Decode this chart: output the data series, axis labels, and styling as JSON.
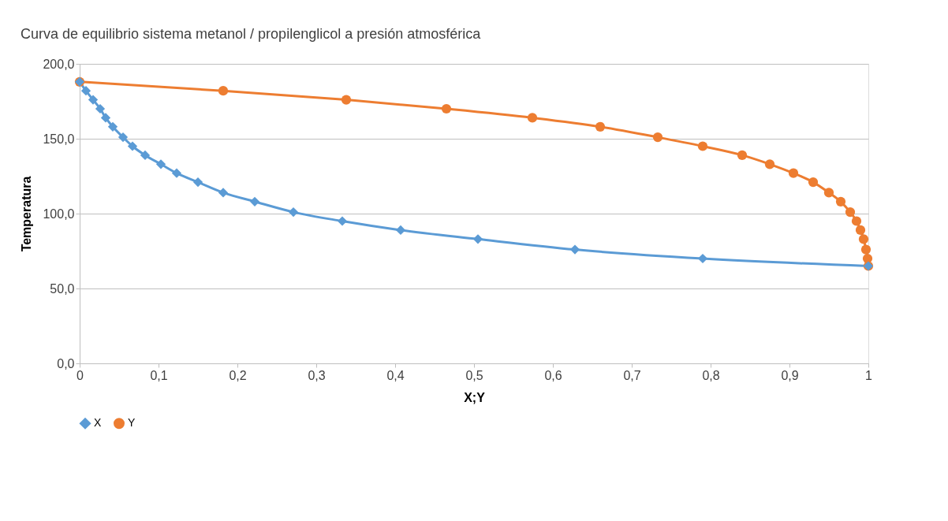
{
  "chart_data": {
    "type": "line",
    "title": "Curva de equilibrio sistema metanol / propilenglicol a presión atmosférica",
    "xlabel": "X;Y",
    "ylabel": "Temperatura",
    "xlim": [
      0,
      1
    ],
    "xticks": [
      0,
      {
        "value": 0.1,
        "label": "0,1"
      },
      {
        "value": 0.2,
        "label": "0,2"
      },
      {
        "value": 0.3,
        "label": "0,3"
      },
      {
        "value": 0.4,
        "label": "0,4"
      },
      {
        "value": 0.5,
        "label": "0,5"
      },
      {
        "value": 0.6,
        "label": "0,6"
      },
      {
        "value": 0.7,
        "label": "0,7"
      },
      {
        "value": 0.8,
        "label": "0,8"
      },
      {
        "value": 0.9,
        "label": "0,9"
      },
      1
    ],
    "ylim": [
      0,
      200
    ],
    "yticks": [
      {
        "value": 0,
        "label": "0,0"
      },
      {
        "value": 50,
        "label": "50,0"
      },
      {
        "value": 100,
        "label": "100,0"
      },
      {
        "value": 150,
        "label": "150,0"
      },
      {
        "value": 200,
        "label": "200,0"
      }
    ],
    "grid": "y",
    "legend": "bottom",
    "line_style": "solid",
    "series": [
      {
        "name": "X",
        "color": "#5b9bd5",
        "marker": "diamond",
        "x": [
          0,
          0.008,
          0.017,
          0.026,
          0.033,
          0.042,
          0.055,
          0.067,
          0.083,
          0.103,
          0.123,
          0.15,
          0.182,
          0.222,
          0.271,
          0.333,
          0.407,
          0.505,
          0.628,
          0.79,
          1.0
        ],
        "values": [
          188,
          182,
          176,
          170,
          164,
          158,
          151,
          145,
          139,
          133,
          127,
          121,
          114,
          108,
          101,
          95,
          89,
          83,
          76,
          70,
          65
        ]
      },
      {
        "name": "Y",
        "color": "#ed7d31",
        "marker": "circle",
        "x": [
          0,
          0.182,
          0.338,
          0.465,
          0.574,
          0.66,
          0.733,
          0.79,
          0.84,
          0.875,
          0.905,
          0.93,
          0.95,
          0.965,
          0.977,
          0.985,
          0.99,
          0.994,
          0.997,
          0.999,
          1.0
        ],
        "values": [
          188,
          182,
          176,
          170,
          164,
          158,
          151,
          145,
          139,
          133,
          127,
          121,
          114,
          108,
          101,
          95,
          89,
          83,
          76,
          70,
          65
        ]
      }
    ]
  }
}
